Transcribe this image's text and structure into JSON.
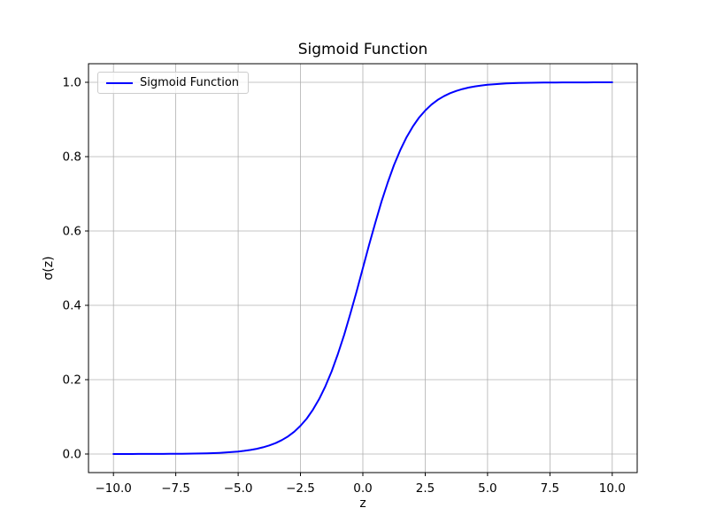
{
  "chart_data": {
    "type": "line",
    "title": "Sigmoid Function",
    "xlabel": "z",
    "ylabel": "σ(z)",
    "xlim": [
      -11,
      11
    ],
    "ylim": [
      -0.05,
      1.05
    ],
    "xticks": [
      -10.0,
      -7.5,
      -5.0,
      -2.5,
      0.0,
      2.5,
      5.0,
      7.5,
      10.0
    ],
    "xtick_labels": [
      "−10.0",
      "−7.5",
      "−5.0",
      "−2.5",
      "0.0",
      "2.5",
      "5.0",
      "7.5",
      "10.0"
    ],
    "yticks": [
      0.0,
      0.2,
      0.4,
      0.6,
      0.8,
      1.0
    ],
    "ytick_labels": [
      "0.0",
      "0.2",
      "0.4",
      "0.6",
      "0.8",
      "1.0"
    ],
    "grid": true,
    "legend": {
      "position": "upper-left",
      "entries": [
        {
          "label": "Sigmoid Function",
          "color": "#0000ff"
        }
      ]
    },
    "series": [
      {
        "name": "Sigmoid Function",
        "color": "#0000ff",
        "x": [
          -10,
          -9.75,
          -9.5,
          -9.25,
          -9,
          -8.75,
          -8.5,
          -8.25,
          -8,
          -7.75,
          -7.5,
          -7.25,
          -7,
          -6.75,
          -6.5,
          -6.25,
          -6,
          -5.75,
          -5.5,
          -5.25,
          -5,
          -4.75,
          -4.5,
          -4.25,
          -4,
          -3.75,
          -3.5,
          -3.25,
          -3,
          -2.75,
          -2.5,
          -2.25,
          -2,
          -1.75,
          -1.5,
          -1.25,
          -1,
          -0.75,
          -0.5,
          -0.25,
          0,
          0.25,
          0.5,
          0.75,
          1,
          1.25,
          1.5,
          1.75,
          2,
          2.25,
          2.5,
          2.75,
          3,
          3.25,
          3.5,
          3.75,
          4,
          4.25,
          4.5,
          4.75,
          5,
          5.25,
          5.5,
          5.75,
          6,
          6.25,
          6.5,
          6.75,
          7,
          7.25,
          7.5,
          7.75,
          8,
          8.25,
          8.5,
          8.75,
          9,
          9.25,
          9.5,
          9.75,
          10
        ],
        "y": [
          5e-05,
          6e-05,
          7e-05,
          0.0001,
          0.00012,
          0.00016,
          0.0002,
          0.00026,
          0.00034,
          0.00043,
          0.00055,
          0.00071,
          0.00091,
          0.00117,
          0.0015,
          0.00193,
          0.00247,
          0.00317,
          0.00407,
          0.00522,
          0.00669,
          0.00858,
          0.01099,
          0.01406,
          0.01799,
          0.02298,
          0.02931,
          0.03733,
          0.04743,
          0.06009,
          0.07586,
          0.09535,
          0.1192,
          0.14805,
          0.18243,
          0.2227,
          0.26894,
          0.32082,
          0.37754,
          0.43782,
          0.5,
          0.56218,
          0.62246,
          0.67918,
          0.73106,
          0.7773,
          0.81757,
          0.85195,
          0.8808,
          0.90465,
          0.92414,
          0.93991,
          0.95257,
          0.96267,
          0.97069,
          0.97702,
          0.98201,
          0.98594,
          0.98901,
          0.99142,
          0.99331,
          0.99478,
          0.99593,
          0.99683,
          0.99753,
          0.99807,
          0.9985,
          0.99883,
          0.99909,
          0.99929,
          0.99945,
          0.99957,
          0.99966,
          0.99974,
          0.9998,
          0.99984,
          0.99988,
          0.9999,
          0.99993,
          0.99994,
          0.99995
        ]
      }
    ],
    "colors": {
      "line": "#0000ff",
      "grid": "#b0b0b0",
      "spine": "#000000",
      "legend_border": "#cccccc",
      "background": "#ffffff"
    }
  }
}
